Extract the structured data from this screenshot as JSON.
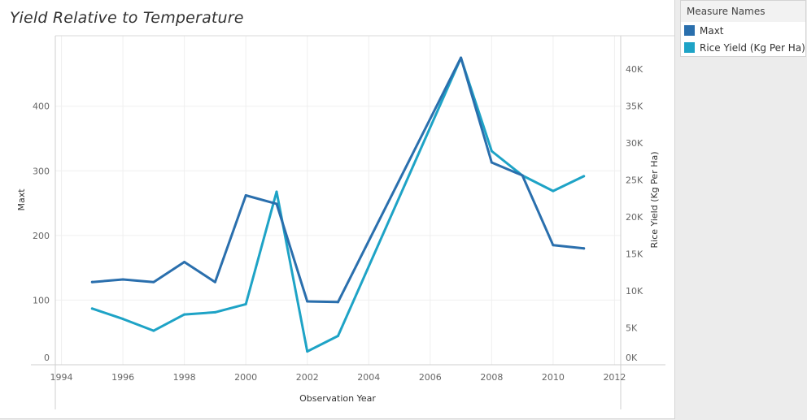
{
  "chart_data": {
    "type": "line",
    "title": "Yield Relative to Temperature",
    "xlabel": "Observation Year",
    "ylabel_left": "Maxt",
    "ylabel_right": "Rice Yield (Kg Per Ha)",
    "x_ticks": [
      "1994",
      "1996",
      "1998",
      "2000",
      "2002",
      "2004",
      "2006",
      "2008",
      "2010",
      "2012"
    ],
    "y_left_ticks": [
      "0",
      "100",
      "200",
      "300",
      "400"
    ],
    "y_right_ticks": [
      "0K",
      "5K",
      "10K",
      "15K",
      "20K",
      "25K",
      "30K",
      "35K",
      "40K"
    ],
    "xlim": [
      1993.8,
      2012.2
    ],
    "ylim_left": [
      0,
      509
    ],
    "ylim_right": [
      0,
      44500
    ],
    "grid": true,
    "x": [
      1995,
      1996,
      1997,
      1998,
      1999,
      2000,
      2001,
      2002,
      2003,
      2007,
      2008,
      2009,
      2010,
      2011
    ],
    "series": [
      {
        "name": "Maxt",
        "axis": "left",
        "color": "#2a6fad",
        "values": [
          128,
          132,
          128,
          159,
          128,
          262,
          249,
          98,
          97,
          475,
          313,
          293,
          185,
          180
        ]
      },
      {
        "name": "Rice Yield (Kg Per Ha)",
        "axis": "right",
        "color": "#1ea3c6",
        "values": [
          7600,
          6200,
          4600,
          6800,
          7100,
          8200,
          23400,
          1800,
          3900,
          41500,
          28900,
          25600,
          23500,
          25500
        ]
      }
    ]
  },
  "legend": {
    "header": "Measure Names",
    "items": [
      {
        "label": "Maxt",
        "color": "#2a6fad"
      },
      {
        "label": "Rice Yield (Kg Per Ha)",
        "color": "#1ea3c6"
      }
    ]
  }
}
